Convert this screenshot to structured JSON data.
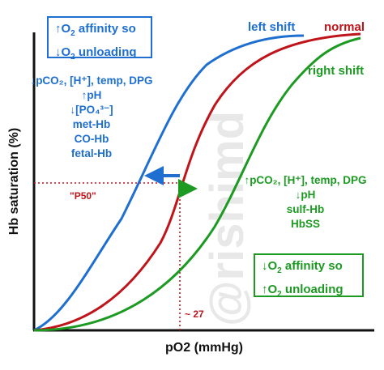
{
  "chart_data": {
    "type": "line",
    "xlabel": "pO2 (mmHg)",
    "ylabel": "Hb saturation (%)",
    "watermark": "@rishimd",
    "series": [
      {
        "name": "left shift",
        "color": "#1e6fd0"
      },
      {
        "name": "normal",
        "color": "#c0141b"
      },
      {
        "name": "right shift",
        "color": "#1c9a22"
      }
    ],
    "p50_label": "\"P50\"",
    "p50_value_label": "~ 27"
  },
  "left_box": {
    "line1_arrow": "↑",
    "line1_o": "O",
    "line1_sub": "2",
    "line1_rest": " affinity so",
    "line2_arrow": "↓",
    "line2_o": "O",
    "line2_sub": "2",
    "line2_rest": " unloading",
    "color": "#1e6fd0"
  },
  "right_box": {
    "line1_arrow": "↓",
    "line1_o": "O",
    "line1_sub": "2",
    "line1_rest": " affinity so",
    "line2_arrow": "↑",
    "line2_o": "O",
    "line2_sub": "2",
    "line2_rest": " unloading",
    "color": "#1c9a22"
  },
  "left_factors": {
    "line1": "↓pCO₂, [H⁺], temp, DPG",
    "line2": "↑pH",
    "line3": "↓[PO₄³⁻]",
    "line4": "met-Hb",
    "line5": "CO-Hb",
    "line6": "fetal-Hb"
  },
  "right_factors": {
    "line1": "↑pCO₂, [H⁺], temp, DPG",
    "line2": "↓pH",
    "line3": "sulf-Hb",
    "line4": "HbSS"
  }
}
